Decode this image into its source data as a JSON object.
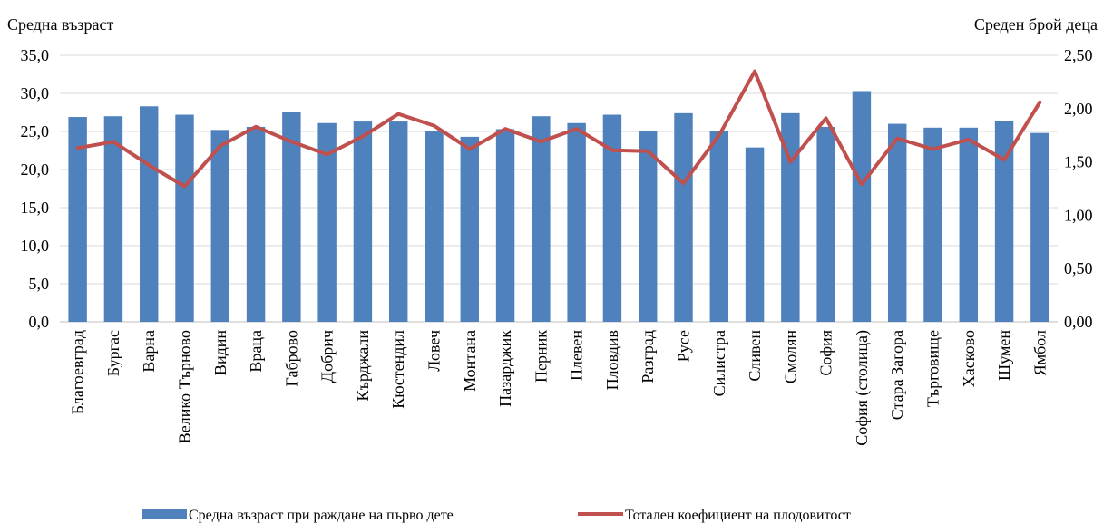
{
  "chart_data": {
    "type": "bar+line",
    "left_axis_title": "Средна възраст",
    "right_axis_title": "Среден брой деца",
    "categories": [
      "Благоевград",
      "Бургас",
      "Варна",
      "Велико Търново",
      "Видин",
      "Враца",
      "Габрово",
      "Добрич",
      "Кърджали",
      "Кюстендил",
      "Ловеч",
      "Монтана",
      "Пазарджик",
      "Перник",
      "Плевен",
      "Пловдив",
      "Разград",
      "Русе",
      "Силистра",
      "Сливен",
      "Смолян",
      "София",
      "София (столица)",
      "Стара Загора",
      "Търговище",
      "Хасково",
      "Шумен",
      "Ямбол"
    ],
    "series": [
      {
        "name": "Средна възраст при раждане на първо дете",
        "type": "bar",
        "axis": "left",
        "color": "#4f81bd",
        "values": [
          26.9,
          27.0,
          28.3,
          27.2,
          25.2,
          25.6,
          27.6,
          26.1,
          26.3,
          26.3,
          25.1,
          24.3,
          25.3,
          27.0,
          26.1,
          27.2,
          25.1,
          27.4,
          25.1,
          22.9,
          27.4,
          25.6,
          30.3,
          26.0,
          25.5,
          25.5,
          26.4,
          24.8
        ]
      },
      {
        "name": "Тотален коефициент на плодовитост",
        "type": "line",
        "axis": "right",
        "color": "#c0504d",
        "values": [
          1.63,
          1.69,
          1.47,
          1.27,
          1.65,
          1.83,
          1.69,
          1.57,
          1.74,
          1.95,
          1.84,
          1.62,
          1.81,
          1.69,
          1.81,
          1.61,
          1.6,
          1.3,
          1.75,
          2.35,
          1.5,
          1.91,
          1.29,
          1.72,
          1.62,
          1.71,
          1.52,
          2.06
        ]
      }
    ],
    "left_ylim": [
      0,
      35
    ],
    "left_ticks": [
      "0,0",
      "5,0",
      "10,0",
      "15,0",
      "20,0",
      "25,0",
      "30,0",
      "35,0"
    ],
    "right_ylim": [
      0,
      2.5
    ],
    "right_ticks": [
      "0,00",
      "0,50",
      "1,00",
      "1,50",
      "2,00",
      "2,50"
    ],
    "grid": true,
    "legend_position": "bottom"
  }
}
